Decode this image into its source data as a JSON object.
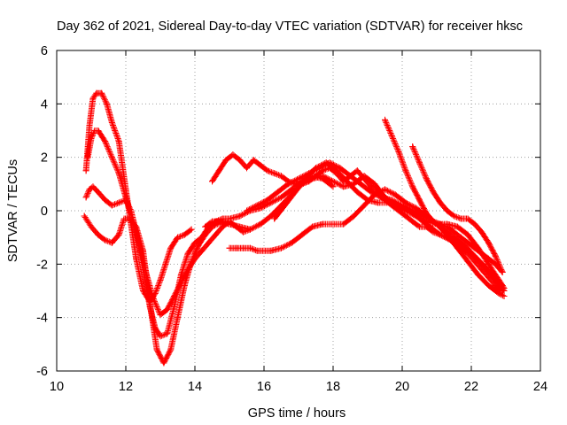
{
  "chart_data": {
    "type": "scatter",
    "title": "Day 362 of 2021, Sidereal Day-to-day VTEC variation (SDTVAR) for receiver hksc",
    "xlabel": "GPS time / hours",
    "ylabel": "SDTVAR / TECUs",
    "xlim": [
      10,
      24
    ],
    "ylim": [
      -6,
      6
    ],
    "xticks": [
      "10",
      "12",
      "14",
      "16",
      "18",
      "20",
      "22",
      "24"
    ],
    "yticks": [
      "-6",
      "-4",
      "-2",
      "0",
      "2",
      "4",
      "6"
    ],
    "grid": true,
    "marker": "+",
    "series": [
      {
        "name": "track-1",
        "color": "#ff0000",
        "x": [
          10.85,
          10.95,
          11.05,
          11.15,
          11.3,
          11.45,
          11.6,
          11.8,
          12.0,
          12.15,
          12.3,
          12.5,
          12.7,
          12.85,
          13.0,
          13.15,
          13.3,
          13.5,
          13.7,
          13.9
        ],
        "y": [
          1.5,
          3.2,
          4.2,
          4.4,
          4.4,
          4.0,
          3.3,
          2.6,
          0.8,
          -0.5,
          -1.8,
          -3.0,
          -3.4,
          -3.1,
          -2.6,
          -2.0,
          -1.4,
          -1.0,
          -0.9,
          -0.7
        ]
      },
      {
        "name": "track-2",
        "color": "#ff0000",
        "x": [
          10.9,
          11.0,
          11.1,
          11.2,
          11.4,
          11.6,
          11.8,
          12.0,
          12.2,
          12.4,
          12.6,
          12.8,
          13.0,
          13.2,
          13.4,
          13.6,
          13.8,
          14.0,
          14.2,
          14.4,
          14.6,
          14.8,
          15.0
        ],
        "y": [
          2.0,
          2.7,
          3.0,
          3.0,
          2.6,
          2.0,
          1.4,
          0.5,
          -0.3,
          -1.3,
          -2.4,
          -3.3,
          -3.9,
          -3.7,
          -3.2,
          -2.7,
          -2.2,
          -1.8,
          -1.5,
          -1.2,
          -0.9,
          -0.6,
          -0.4
        ]
      },
      {
        "name": "track-3",
        "color": "#ff0000",
        "x": [
          10.85,
          10.95,
          11.05,
          11.2,
          11.4,
          11.6,
          11.8,
          12.0,
          12.15,
          12.3,
          12.5,
          12.7,
          12.85,
          13.0,
          13.2,
          13.4,
          13.6,
          13.8,
          14.0,
          14.2
        ],
        "y": [
          0.5,
          0.8,
          0.9,
          0.7,
          0.4,
          0.2,
          0.3,
          0.4,
          0.0,
          -0.8,
          -2.2,
          -3.6,
          -4.4,
          -4.7,
          -4.6,
          -3.6,
          -2.4,
          -1.6,
          -1.2,
          -1.0
        ]
      },
      {
        "name": "track-4",
        "color": "#ff0000",
        "x": [
          10.8,
          10.9,
          11.0,
          11.2,
          11.4,
          11.6,
          11.8,
          11.95,
          12.1,
          12.3,
          12.5,
          12.7,
          12.9,
          13.1,
          13.3,
          13.5,
          13.7,
          13.9,
          14.1,
          14.3,
          14.5,
          14.8,
          15.0,
          15.2,
          15.4,
          15.6
        ],
        "y": [
          -0.2,
          -0.4,
          -0.6,
          -0.9,
          -1.1,
          -1.2,
          -0.9,
          -0.3,
          -0.3,
          -0.6,
          -1.5,
          -3.5,
          -5.2,
          -5.7,
          -5.2,
          -4.0,
          -2.8,
          -1.9,
          -1.3,
          -0.9,
          -0.6,
          -0.4,
          -0.4,
          -0.6,
          -0.8,
          -0.7
        ]
      },
      {
        "name": "track-5",
        "color": "#ff0000",
        "x": [
          14.5,
          14.7,
          14.9,
          15.1,
          15.3,
          15.5,
          15.7,
          15.9,
          16.1,
          16.3,
          16.5,
          16.7,
          16.9,
          17.1,
          17.3,
          17.5,
          17.7,
          17.9,
          18.1,
          18.3,
          18.5,
          18.7,
          18.9,
          19.1,
          19.3,
          19.5,
          19.7,
          19.9,
          20.1,
          20.3,
          20.5,
          20.7,
          20.9,
          21.1,
          21.3,
          21.5,
          21.7,
          21.9,
          22.1,
          22.3,
          22.5,
          22.7,
          22.9
        ],
        "y": [
          1.1,
          1.5,
          1.9,
          2.1,
          1.9,
          1.6,
          1.9,
          1.7,
          1.5,
          1.4,
          1.3,
          1.1,
          1.0,
          1.0,
          1.1,
          1.3,
          1.5,
          1.6,
          1.4,
          1.1,
          1.3,
          1.5,
          1.2,
          0.9,
          0.6,
          0.4,
          0.2,
          0.0,
          -0.2,
          -0.4,
          -0.6,
          -0.6,
          -0.8,
          -0.9,
          -1.0,
          -1.2,
          -1.4,
          -1.6,
          -1.9,
          -2.2,
          -2.5,
          -2.8,
          -3.0
        ]
      },
      {
        "name": "track-6",
        "color": "#ff0000",
        "x": [
          14.3,
          14.5,
          14.7,
          15.0,
          15.3,
          15.6,
          15.9,
          16.2,
          16.5,
          16.8,
          17.1,
          17.4,
          17.7,
          18.0,
          18.3,
          18.6,
          18.9,
          19.2,
          19.5,
          19.8,
          20.1,
          20.4,
          20.7,
          21.0,
          21.3,
          21.6,
          21.9,
          22.2,
          22.5,
          22.8,
          22.95
        ],
        "y": [
          -0.6,
          -0.4,
          -0.4,
          -0.5,
          -0.6,
          -0.7,
          -0.5,
          -0.2,
          0.2,
          0.6,
          1.0,
          1.2,
          1.3,
          1.1,
          0.9,
          1.0,
          1.3,
          1.0,
          0.5,
          0.2,
          0.0,
          -0.2,
          -0.4,
          -0.5,
          -0.5,
          -0.6,
          -0.9,
          -1.4,
          -2.0,
          -2.6,
          -2.9
        ]
      },
      {
        "name": "track-7",
        "color": "#ff0000",
        "x": [
          15.0,
          15.2,
          15.4,
          15.6,
          15.8,
          16.0,
          16.2,
          16.5,
          16.8,
          17.1,
          17.4,
          17.7,
          18.0,
          18.3,
          18.6,
          18.9,
          19.2,
          19.5,
          19.8,
          20.1,
          20.4,
          20.7,
          21.0,
          21.3,
          21.6,
          21.9,
          22.2,
          22.5,
          22.8,
          22.95
        ],
        "y": [
          -1.4,
          -1.4,
          -1.4,
          -1.4,
          -1.5,
          -1.5,
          -1.5,
          -1.4,
          -1.2,
          -0.9,
          -0.6,
          -0.5,
          -0.5,
          -0.5,
          -0.2,
          0.2,
          0.6,
          0.8,
          0.6,
          0.3,
          0.1,
          -0.2,
          -0.5,
          -0.9,
          -1.4,
          -1.9,
          -2.4,
          -2.8,
          -3.1,
          -3.2
        ]
      },
      {
        "name": "track-8",
        "color": "#ff0000",
        "x": [
          15.5,
          15.8,
          16.1,
          16.4,
          16.7,
          17.0,
          17.3,
          17.6,
          17.9,
          18.2,
          18.5,
          18.8,
          19.1,
          19.4,
          19.7,
          20.0,
          20.3,
          20.6,
          20.9,
          21.2,
          21.5,
          21.8,
          22.1,
          22.4,
          22.7,
          22.95
        ],
        "y": [
          0.0,
          0.2,
          0.4,
          0.7,
          1.0,
          1.2,
          1.4,
          1.6,
          1.8,
          1.6,
          1.3,
          1.0,
          0.7,
          0.5,
          0.4,
          0.2,
          0.0,
          -0.2,
          -0.4,
          -0.7,
          -1.0,
          -1.3,
          -1.7,
          -2.1,
          -2.6,
          -3.0
        ]
      },
      {
        "name": "track-9",
        "color": "#ff0000",
        "x": [
          19.5,
          19.7,
          19.9,
          20.1,
          20.3,
          20.5,
          20.7,
          20.9,
          21.1,
          21.3,
          21.5,
          21.7,
          21.9,
          22.1,
          22.3,
          22.5,
          22.7,
          22.9
        ],
        "y": [
          3.4,
          2.8,
          2.2,
          1.5,
          0.9,
          0.4,
          -0.1,
          -0.4,
          -0.5,
          -0.6,
          -0.8,
          -1.0,
          -1.2,
          -1.4,
          -1.6,
          -1.8,
          -2.0,
          -2.3
        ]
      },
      {
        "name": "track-10",
        "color": "#ff0000",
        "x": [
          20.3,
          20.5,
          20.7,
          20.9,
          21.1,
          21.3,
          21.5,
          21.7,
          21.9,
          22.1,
          22.3,
          22.5,
          22.7,
          22.9
        ],
        "y": [
          2.4,
          1.8,
          1.2,
          0.7,
          0.3,
          0.0,
          -0.2,
          -0.3,
          -0.3,
          -0.5,
          -0.8,
          -1.2,
          -1.7,
          -2.3
        ]
      },
      {
        "name": "track-11",
        "color": "#ff0000",
        "x": [
          16.3,
          16.6,
          16.9,
          17.2,
          17.5,
          17.8,
          18.1,
          18.4,
          18.7,
          19.0,
          19.3,
          19.6,
          19.9,
          20.2,
          20.5,
          20.8,
          21.1,
          21.4,
          21.7,
          22.0,
          22.3,
          22.6,
          22.9
        ],
        "y": [
          -0.3,
          0.2,
          0.7,
          1.2,
          1.6,
          1.8,
          1.5,
          1.1,
          0.7,
          0.4,
          0.3,
          0.3,
          0.2,
          0.0,
          -0.3,
          -0.6,
          -0.9,
          -1.1,
          -1.3,
          -1.6,
          -2.0,
          -2.4,
          -2.8
        ]
      },
      {
        "name": "track-12",
        "color": "#ff0000",
        "x": [
          14.0,
          14.2,
          14.4,
          14.6,
          14.8,
          15.0,
          15.3,
          15.6,
          15.9,
          16.2,
          16.5,
          16.8,
          17.1,
          17.4,
          17.7,
          18.0
        ],
        "y": [
          -1.6,
          -1.0,
          -0.6,
          -0.4,
          -0.3,
          -0.3,
          -0.2,
          0.0,
          0.1,
          0.3,
          0.5,
          0.8,
          1.1,
          1.3,
          1.2,
          0.9
        ]
      }
    ]
  }
}
